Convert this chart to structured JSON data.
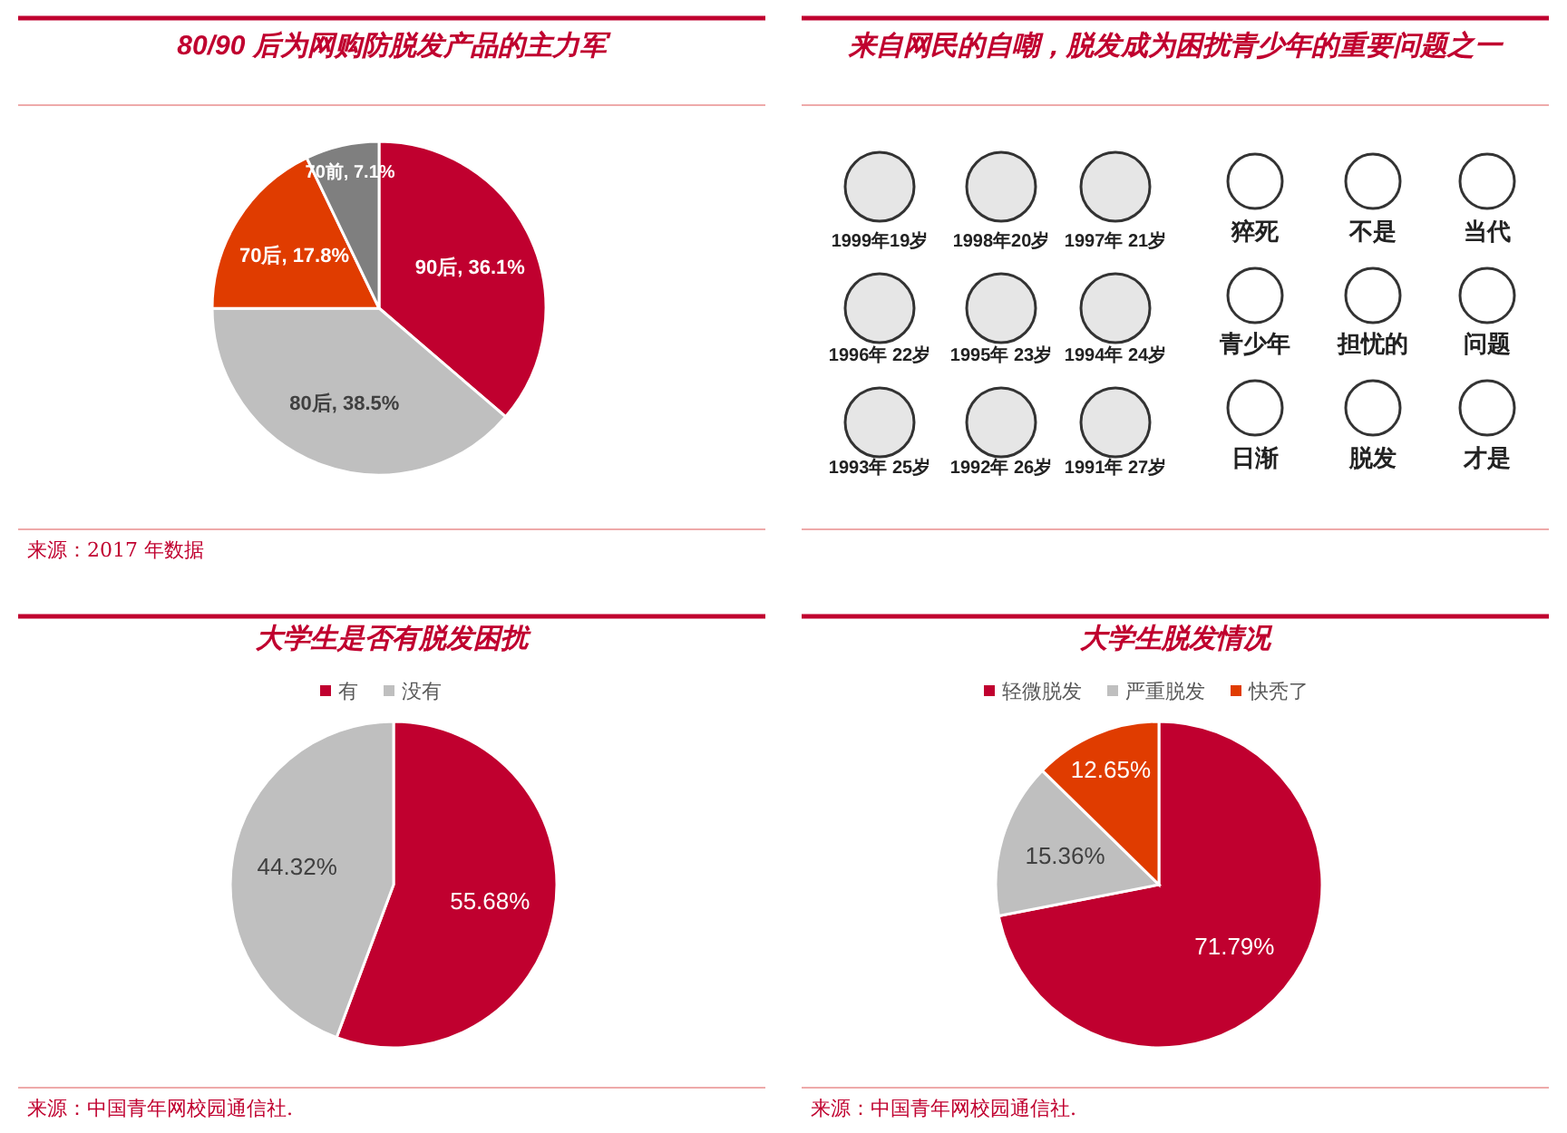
{
  "chart_data": [
    {
      "type": "pie",
      "title": "80/90 后为网购防脱发产品的主力军",
      "categories": [
        "90后",
        "80后",
        "70后",
        "70前"
      ],
      "values": [
        36.1,
        38.5,
        17.8,
        7.1
      ],
      "colors": [
        "#c0002f",
        "#bfbfbf",
        "#e03c00",
        "#7f7f7f"
      ],
      "value_labels": [
        "36.1%",
        "38.5%",
        "17.8%",
        "7.1%"
      ],
      "annotations": [
        "来源：2017 年数据"
      ]
    },
    {
      "type": "other",
      "title": "来自网民的自嘲，脱发成为困扰青少年的重要问题之一",
      "annotations": [
        "1999年19岁",
        "1998年20岁",
        "1997年 21岁",
        "1996年 22岁",
        "1995年 23岁",
        "1994年 24岁",
        "1993年 25岁",
        "1992年 26岁",
        "1991年 27岁",
        "猝死",
        "不是",
        "当代",
        "青少年",
        "担忧的",
        "问题",
        "日渐",
        "脱发",
        "才是"
      ]
    },
    {
      "type": "pie",
      "title": "大学生是否有脱发困扰",
      "categories": [
        "有",
        "没有"
      ],
      "values": [
        55.68,
        44.32
      ],
      "colors": [
        "#c0002f",
        "#bfbfbf"
      ],
      "value_labels": [
        "55.68%",
        "44.32%"
      ],
      "legend": "top",
      "annotations": [
        "来源：中国青年网校园通信社."
      ]
    },
    {
      "type": "pie",
      "title": "大学生脱发情况",
      "categories": [
        "轻微脱发",
        "严重脱发",
        "快秃了"
      ],
      "values": [
        71.79,
        15.36,
        12.65
      ],
      "colors": [
        "#c0002f",
        "#bfbfbf",
        "#e03c00"
      ],
      "value_labels": [
        "71.79%",
        "15.36%",
        "12.65%"
      ],
      "legend": "top",
      "annotations": [
        "来源：中国青年网校园通信社."
      ]
    }
  ]
}
